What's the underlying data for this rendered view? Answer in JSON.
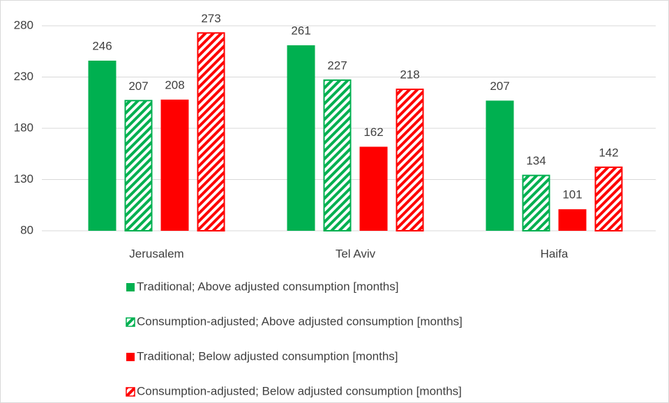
{
  "chart_data": {
    "type": "bar",
    "categories": [
      "Jerusalem",
      "Tel Aviv",
      "Haifa"
    ],
    "series": [
      {
        "name": "Traditional; Above adjusted consumption [months]",
        "color": "#00b050",
        "pattern": "solid",
        "values": [
          246,
          261,
          207
        ]
      },
      {
        "name": "Consumption-adjusted; Above adjusted consumption [months]",
        "color": "#00b050",
        "pattern": "hatch",
        "values": [
          207,
          227,
          134
        ]
      },
      {
        "name": "Traditional; Below adjusted consumption [months]",
        "color": "#ff0000",
        "pattern": "solid",
        "values": [
          208,
          162,
          101
        ]
      },
      {
        "name": "Consumption-adjusted; Below adjusted consumption [months]",
        "color": "#ff0000",
        "pattern": "hatch",
        "values": [
          273,
          218,
          142
        ]
      }
    ],
    "ylim": [
      80,
      280
    ],
    "yticks": [
      80,
      130,
      180,
      230,
      280
    ],
    "grid": true,
    "data_labels": true,
    "legend": "bottom"
  }
}
